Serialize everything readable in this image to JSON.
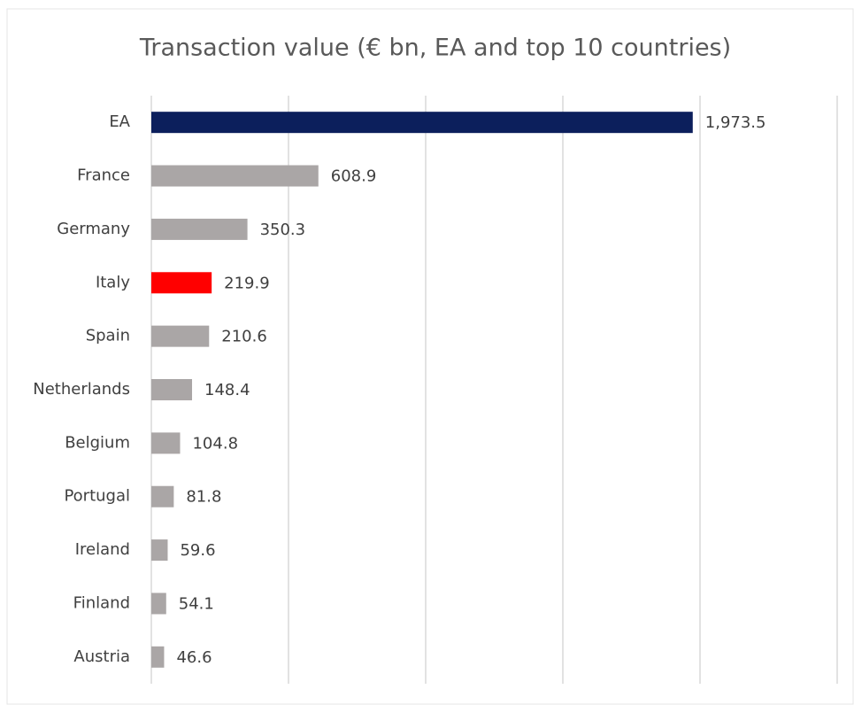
{
  "chart_data": {
    "type": "barh",
    "title": "Transaction value (€ bn, EA and top 10 countries)",
    "categories": [
      "EA",
      "France",
      "Germany",
      "Italy",
      "Spain",
      "Netherlands",
      "Belgium",
      "Portugal",
      "Ireland",
      "Finland",
      "Austria"
    ],
    "values": [
      1973.5,
      608.9,
      350.3,
      219.9,
      210.6,
      148.4,
      104.8,
      81.8,
      59.6,
      54.1,
      46.6
    ],
    "value_labels": [
      "1,973.5",
      "608.9",
      "350.3",
      "219.9",
      "210.6",
      "148.4",
      "104.8",
      "81.8",
      "59.6",
      "54.1",
      "46.6"
    ],
    "colors": [
      "#0c1f5c",
      "#aaa6a6",
      "#aaa6a6",
      "#ff0000",
      "#aaa6a6",
      "#aaa6a6",
      "#aaa6a6",
      "#aaa6a6",
      "#aaa6a6",
      "#aaa6a6",
      "#aaa6a6"
    ],
    "xlim": [
      0,
      2500
    ],
    "xticks": [
      0,
      500,
      1000,
      1500,
      2000,
      2500
    ],
    "grid": true
  }
}
